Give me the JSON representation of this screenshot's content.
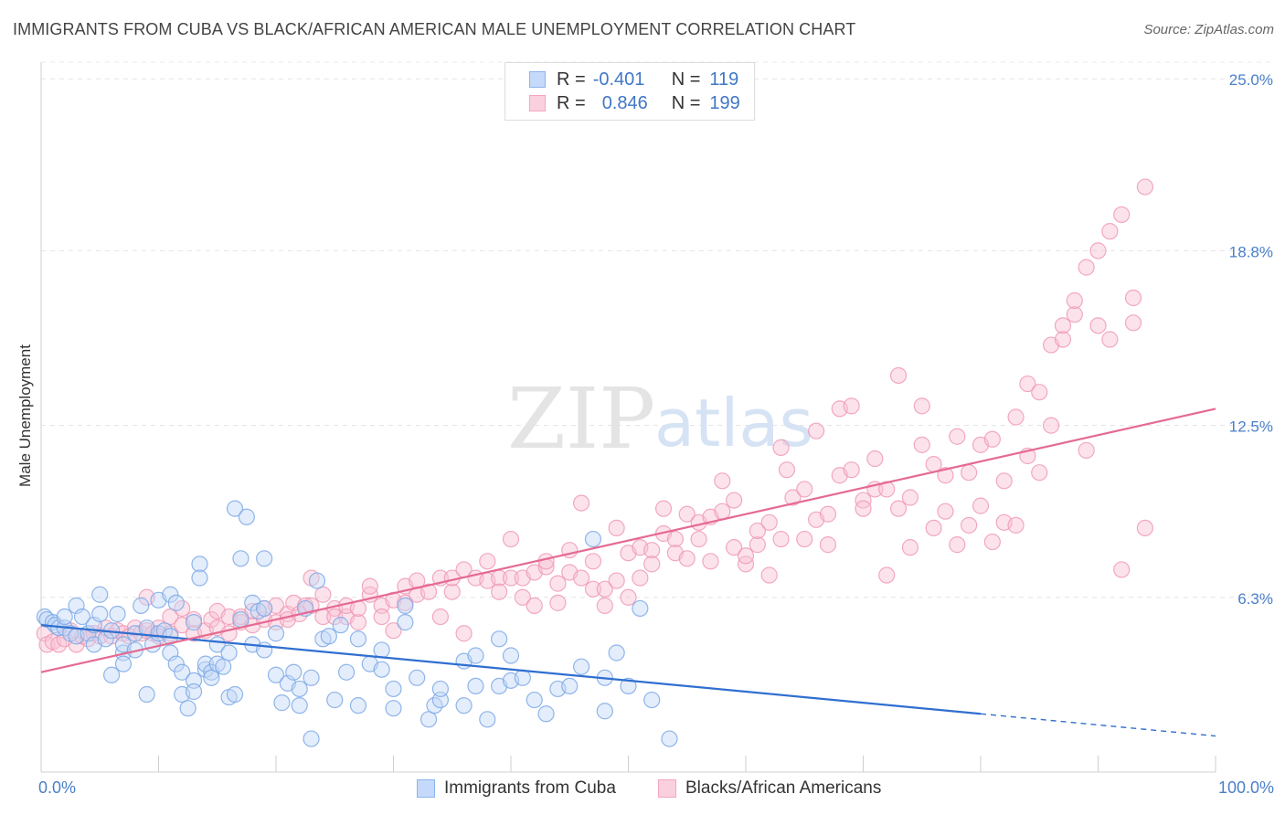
{
  "header": {
    "title": "IMMIGRANTS FROM CUBA VS BLACK/AFRICAN AMERICAN MALE UNEMPLOYMENT CORRELATION CHART",
    "source": "Source: ZipAtlas.com"
  },
  "watermark": {
    "zip": "ZIP",
    "atlas": "atlas"
  },
  "legend": {
    "rows": [
      {
        "r_label": "R =",
        "r_value": "-0.401",
        "n_label": "N =",
        "n_value": "119",
        "color": "#8ab4ee"
      },
      {
        "r_label": "R =",
        "r_value": "0.846",
        "n_label": "N =",
        "n_value": "199",
        "color": "#f4a6be"
      }
    ]
  },
  "bottom_legend": {
    "blue": {
      "label": "Immigrants from Cuba",
      "color": "#8ab4ee"
    },
    "pink": {
      "label": "Blacks/African Americans",
      "color": "#f4a6be"
    }
  },
  "chart_data": {
    "type": "scatter",
    "title": "IMMIGRANTS FROM CUBA VS BLACK/AFRICAN AMERICAN MALE UNEMPLOYMENT CORRELATION CHART",
    "xlabel": "",
    "ylabel": "Male Unemployment",
    "x_tick_labels": [
      "0.0%",
      "100.0%"
    ],
    "y_tick_labels": [
      "6.3%",
      "12.5%",
      "18.8%",
      "25.0%"
    ],
    "y_ticks": [
      6.3,
      12.5,
      18.8,
      25.0
    ],
    "xlim": [
      0,
      100
    ],
    "ylim": [
      0,
      25.6
    ],
    "grid": true,
    "legend_position": "top-center",
    "series": [
      {
        "name": "Immigrants from Cuba",
        "color": "#8ab4ee",
        "trend_color": "#2f6fd0",
        "trend": {
          "x": [
            0,
            80
          ],
          "y": [
            5.3,
            2.1
          ],
          "dashed_extension": {
            "x": [
              80,
              100
            ],
            "y": [
              2.1,
              1.3
            ]
          }
        },
        "points": [
          [
            0.3,
            5.6
          ],
          [
            0.5,
            5.5
          ],
          [
            1,
            5.4
          ],
          [
            1.2,
            5.3
          ],
          [
            1.5,
            5.2
          ],
          [
            2,
            5.2
          ],
          [
            2,
            5.6
          ],
          [
            2.5,
            5.0
          ],
          [
            3,
            4.9
          ],
          [
            3,
            6.0
          ],
          [
            3.5,
            5.6
          ],
          [
            4,
            5.0
          ],
          [
            4.5,
            5.3
          ],
          [
            4.5,
            4.6
          ],
          [
            5,
            5.7
          ],
          [
            5,
            6.4
          ],
          [
            5.5,
            4.8
          ],
          [
            6,
            3.5
          ],
          [
            6,
            5.1
          ],
          [
            6.5,
            5.7
          ],
          [
            7,
            4.3
          ],
          [
            7,
            4.6
          ],
          [
            7,
            3.9
          ],
          [
            8,
            4.4
          ],
          [
            8,
            5.0
          ],
          [
            8.5,
            6.0
          ],
          [
            9,
            2.8
          ],
          [
            9,
            5.2
          ],
          [
            9.5,
            4.6
          ],
          [
            10,
            6.2
          ],
          [
            10,
            5.0
          ],
          [
            10.5,
            5.1
          ],
          [
            11,
            6.4
          ],
          [
            11,
            4.9
          ],
          [
            11,
            4.3
          ],
          [
            11.5,
            3.9
          ],
          [
            11.5,
            6.1
          ],
          [
            12,
            3.6
          ],
          [
            12,
            2.8
          ],
          [
            12.5,
            2.3
          ],
          [
            13,
            5.4
          ],
          [
            13,
            3.3
          ],
          [
            13,
            2.9
          ],
          [
            13.5,
            7.5
          ],
          [
            13.5,
            7.0
          ],
          [
            14,
            3.7
          ],
          [
            14,
            3.9
          ],
          [
            14.5,
            3.6
          ],
          [
            14.5,
            3.4
          ],
          [
            15,
            3.9
          ],
          [
            15,
            4.6
          ],
          [
            15.5,
            3.8
          ],
          [
            16,
            4.3
          ],
          [
            16,
            2.7
          ],
          [
            16.5,
            9.5
          ],
          [
            16.5,
            2.8
          ],
          [
            17,
            7.7
          ],
          [
            17,
            5.5
          ],
          [
            17.5,
            9.2
          ],
          [
            18,
            6.1
          ],
          [
            18,
            4.6
          ],
          [
            18.5,
            5.8
          ],
          [
            19,
            7.7
          ],
          [
            19,
            5.9
          ],
          [
            19,
            4.4
          ],
          [
            20,
            5.0
          ],
          [
            20,
            3.5
          ],
          [
            20.5,
            2.5
          ],
          [
            21,
            3.2
          ],
          [
            21.5,
            3.6
          ],
          [
            22,
            2.4
          ],
          [
            22,
            3.0
          ],
          [
            22.5,
            5.9
          ],
          [
            23,
            3.4
          ],
          [
            23,
            1.2
          ],
          [
            23.5,
            6.9
          ],
          [
            24,
            4.8
          ],
          [
            24.5,
            4.9
          ],
          [
            25,
            2.6
          ],
          [
            25.5,
            5.3
          ],
          [
            26,
            3.6
          ],
          [
            27,
            4.8
          ],
          [
            27,
            2.4
          ],
          [
            28,
            3.9
          ],
          [
            29,
            4.4
          ],
          [
            29,
            3.7
          ],
          [
            30,
            3.0
          ],
          [
            30,
            2.3
          ],
          [
            31,
            6.0
          ],
          [
            31,
            5.4
          ],
          [
            32,
            3.4
          ],
          [
            33,
            1.9
          ],
          [
            33.5,
            2.4
          ],
          [
            34,
            2.6
          ],
          [
            34,
            3.0
          ],
          [
            36,
            4.0
          ],
          [
            36,
            2.4
          ],
          [
            37,
            4.2
          ],
          [
            37,
            3.1
          ],
          [
            38,
            1.9
          ],
          [
            39,
            4.8
          ],
          [
            39,
            3.1
          ],
          [
            40,
            4.2
          ],
          [
            40,
            3.3
          ],
          [
            41,
            3.4
          ],
          [
            42,
            2.6
          ],
          [
            43,
            2.1
          ],
          [
            44,
            3.0
          ],
          [
            45,
            3.1
          ],
          [
            46,
            3.8
          ],
          [
            47,
            8.4
          ],
          [
            48,
            3.4
          ],
          [
            48,
            2.2
          ],
          [
            49,
            4.3
          ],
          [
            50,
            3.1
          ],
          [
            51,
            5.9
          ],
          [
            52,
            2.6
          ],
          [
            53.5,
            1.2
          ]
        ]
      },
      {
        "name": "Blacks/African Americans",
        "color": "#f4a6be",
        "trend_color": "#e56a92",
        "trend": {
          "x": [
            0,
            100
          ],
          "y": [
            3.6,
            13.1
          ]
        },
        "points": [
          [
            0.3,
            5.0
          ],
          [
            0.5,
            4.6
          ],
          [
            1,
            4.7
          ],
          [
            1.5,
            4.6
          ],
          [
            2,
            4.8
          ],
          [
            2.5,
            5.1
          ],
          [
            3,
            4.6
          ],
          [
            3.5,
            4.9
          ],
          [
            4,
            4.8
          ],
          [
            4.5,
            5.0
          ],
          [
            5,
            4.9
          ],
          [
            5.5,
            5.2
          ],
          [
            6,
            4.9
          ],
          [
            6.5,
            5.1
          ],
          [
            7,
            5.0
          ],
          [
            7.5,
            4.9
          ],
          [
            8,
            5.2
          ],
          [
            8.5,
            5.0
          ],
          [
            9,
            5.1
          ],
          [
            9,
            6.3
          ],
          [
            9.5,
            5.0
          ],
          [
            10,
            5.2
          ],
          [
            10,
            4.9
          ],
          [
            11,
            5.0
          ],
          [
            11,
            5.6
          ],
          [
            12,
            5.3
          ],
          [
            12,
            5.9
          ],
          [
            13,
            5.5
          ],
          [
            13,
            5.0
          ],
          [
            14,
            5.1
          ],
          [
            14.5,
            5.5
          ],
          [
            15,
            5.8
          ],
          [
            15,
            5.2
          ],
          [
            16,
            5.0
          ],
          [
            16,
            5.6
          ],
          [
            17,
            5.4
          ],
          [
            17,
            5.6
          ],
          [
            18,
            5.3
          ],
          [
            18,
            5.8
          ],
          [
            19,
            5.5
          ],
          [
            19,
            5.9
          ],
          [
            20,
            5.4
          ],
          [
            20,
            6.0
          ],
          [
            21,
            5.7
          ],
          [
            21,
            5.5
          ],
          [
            21.5,
            6.1
          ],
          [
            22,
            5.7
          ],
          [
            22.5,
            6.0
          ],
          [
            23,
            6.0
          ],
          [
            23,
            7.0
          ],
          [
            24,
            5.6
          ],
          [
            24,
            6.4
          ],
          [
            25,
            5.9
          ],
          [
            25,
            5.6
          ],
          [
            26,
            5.6
          ],
          [
            26,
            6.0
          ],
          [
            27,
            5.4
          ],
          [
            27,
            5.9
          ],
          [
            28,
            6.4
          ],
          [
            28,
            6.7
          ],
          [
            29,
            6.0
          ],
          [
            29,
            5.6
          ],
          [
            30,
            6.2
          ],
          [
            30,
            5.1
          ],
          [
            31,
            6.1
          ],
          [
            31,
            6.7
          ],
          [
            32,
            6.4
          ],
          [
            32,
            6.9
          ],
          [
            33,
            6.5
          ],
          [
            34,
            7.0
          ],
          [
            34,
            5.6
          ],
          [
            35,
            6.5
          ],
          [
            35,
            7.0
          ],
          [
            36,
            7.3
          ],
          [
            36,
            5.0
          ],
          [
            37,
            7.0
          ],
          [
            38,
            6.9
          ],
          [
            38,
            7.6
          ],
          [
            39,
            7.0
          ],
          [
            39,
            6.5
          ],
          [
            40,
            7.0
          ],
          [
            40,
            8.4
          ],
          [
            41,
            7.0
          ],
          [
            41,
            6.3
          ],
          [
            42,
            7.2
          ],
          [
            42,
            6.0
          ],
          [
            43,
            7.4
          ],
          [
            43,
            7.6
          ],
          [
            44,
            6.8
          ],
          [
            44,
            6.1
          ],
          [
            45,
            7.2
          ],
          [
            45,
            8.0
          ],
          [
            46,
            7.0
          ],
          [
            46,
            9.7
          ],
          [
            47,
            7.6
          ],
          [
            47,
            6.6
          ],
          [
            48,
            6.6
          ],
          [
            48,
            6.0
          ],
          [
            49,
            6.9
          ],
          [
            49,
            8.8
          ],
          [
            50,
            7.9
          ],
          [
            50,
            6.3
          ],
          [
            51,
            8.1
          ],
          [
            51,
            7.0
          ],
          [
            52,
            8.0
          ],
          [
            52,
            7.5
          ],
          [
            53,
            8.6
          ],
          [
            53,
            9.5
          ],
          [
            54,
            8.4
          ],
          [
            54,
            7.9
          ],
          [
            55,
            9.3
          ],
          [
            55,
            7.7
          ],
          [
            56,
            9.0
          ],
          [
            56,
            8.4
          ],
          [
            57,
            7.6
          ],
          [
            57,
            9.2
          ],
          [
            58,
            9.4
          ],
          [
            58,
            10.5
          ],
          [
            59,
            8.1
          ],
          [
            59,
            9.8
          ],
          [
            60,
            7.5
          ],
          [
            60,
            7.8
          ],
          [
            61,
            8.2
          ],
          [
            61,
            8.7
          ],
          [
            62,
            7.1
          ],
          [
            62,
            9.0
          ],
          [
            63,
            8.4
          ],
          [
            63,
            11.7
          ],
          [
            63.5,
            10.9
          ],
          [
            64,
            9.9
          ],
          [
            65,
            10.2
          ],
          [
            65,
            8.4
          ],
          [
            66,
            9.1
          ],
          [
            66,
            12.3
          ],
          [
            67,
            9.3
          ],
          [
            67,
            8.2
          ],
          [
            68,
            10.7
          ],
          [
            68,
            13.1
          ],
          [
            69,
            10.9
          ],
          [
            69,
            13.2
          ],
          [
            70,
            9.8
          ],
          [
            70,
            9.5
          ],
          [
            71,
            10.2
          ],
          [
            71,
            11.3
          ],
          [
            72,
            10.2
          ],
          [
            72,
            7.1
          ],
          [
            73,
            14.3
          ],
          [
            73,
            9.5
          ],
          [
            74,
            9.9
          ],
          [
            74,
            8.1
          ],
          [
            75,
            13.2
          ],
          [
            75,
            11.8
          ],
          [
            76,
            11.1
          ],
          [
            76,
            8.8
          ],
          [
            77,
            10.7
          ],
          [
            77,
            9.4
          ],
          [
            78,
            12.1
          ],
          [
            78,
            8.2
          ],
          [
            79,
            10.8
          ],
          [
            79,
            8.9
          ],
          [
            80,
            9.6
          ],
          [
            80,
            11.8
          ],
          [
            81,
            12.0
          ],
          [
            81,
            8.3
          ],
          [
            82,
            9.0
          ],
          [
            82,
            10.5
          ],
          [
            83,
            8.9
          ],
          [
            83,
            12.8
          ],
          [
            84,
            14.0
          ],
          [
            84,
            11.4
          ],
          [
            85,
            13.7
          ],
          [
            85,
            10.8
          ],
          [
            86,
            12.5
          ],
          [
            86,
            15.4
          ],
          [
            87,
            16.1
          ],
          [
            87,
            15.6
          ],
          [
            88,
            16.5
          ],
          [
            88,
            17.0
          ],
          [
            89,
            18.2
          ],
          [
            89,
            11.6
          ],
          [
            90,
            16.1
          ],
          [
            90,
            18.8
          ],
          [
            91,
            15.6
          ],
          [
            91,
            19.5
          ],
          [
            92,
            7.3
          ],
          [
            92,
            20.1
          ],
          [
            93,
            17.1
          ],
          [
            93,
            16.2
          ],
          [
            94,
            8.8
          ],
          [
            94,
            21.1
          ]
        ]
      }
    ]
  }
}
